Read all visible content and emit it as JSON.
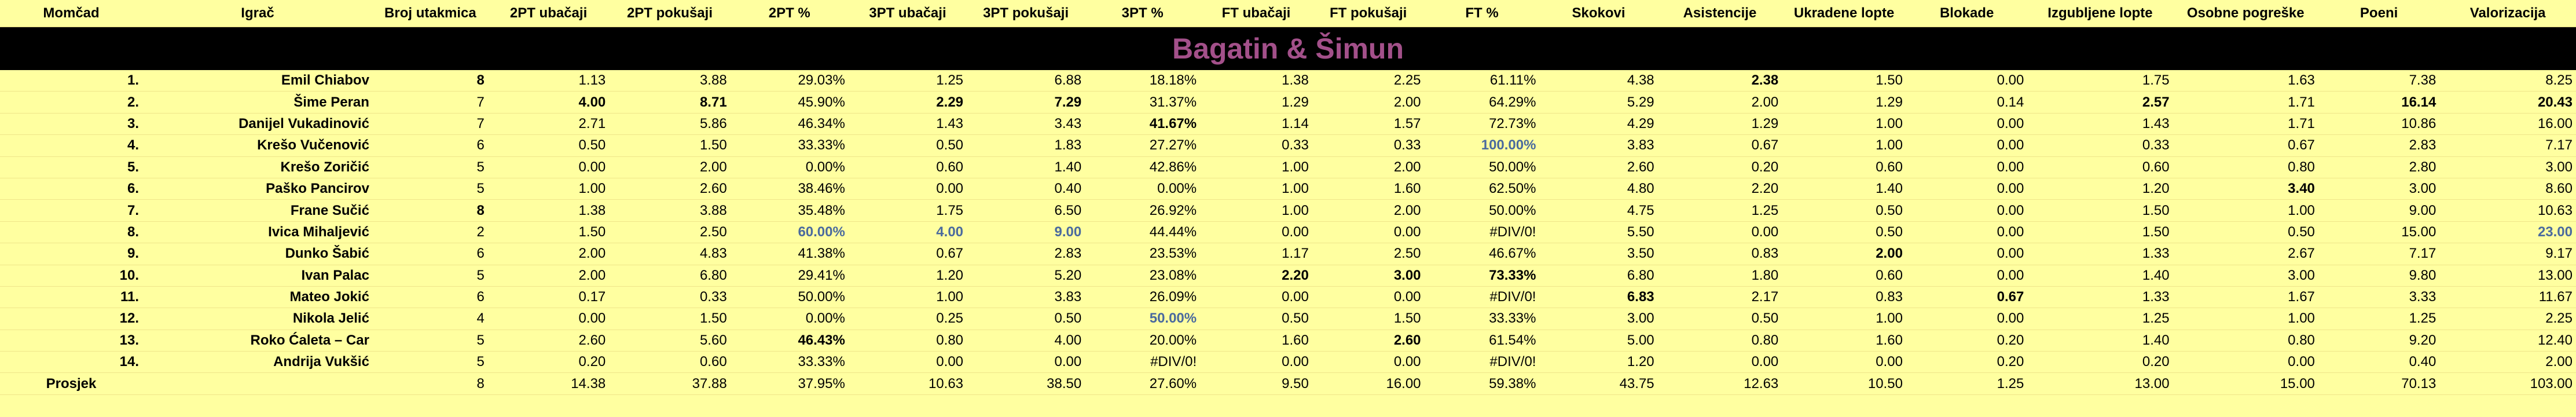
{
  "title": "Bagatin & Šimun",
  "columns": [
    "Momčad",
    "Igrač",
    "Broj utakmica",
    "2PT ubačaji",
    "2PT pokušaji",
    "2PT %",
    "3PT ubačaji",
    "3PT pokušaji",
    "3PT %",
    "FT ubačaji",
    "FT pokušaji",
    "FT %",
    "Skokovi",
    "Asistencije",
    "Ukradene lopte",
    "Blokade",
    "Izgubljene lopte",
    "Osobne pogreške",
    "Poeni",
    "Valorizacija"
  ],
  "rows": [
    {
      "rank": "1.",
      "player": "Emil Chiabov",
      "games": "8",
      "pt2m": "1.13",
      "pt2a": "3.88",
      "pt2p": "29.03%",
      "pt3m": "1.25",
      "pt3a": "6.88",
      "pt3p": "18.18%",
      "ftm": "1.38",
      "fta": "2.25",
      "ftp": "61.11%",
      "reb": "4.38",
      "ast": "2.38",
      "stl": "1.50",
      "blk": "0.00",
      "tov": "1.75",
      "pf": "1.63",
      "pts": "7.38",
      "val": "8.25"
    },
    {
      "rank": "2.",
      "player": "Šime Peran",
      "games": "7",
      "pt2m": "4.00",
      "pt2a": "8.71",
      "pt2p": "45.90%",
      "pt3m": "2.29",
      "pt3a": "7.29",
      "pt3p": "31.37%",
      "ftm": "1.29",
      "fta": "2.00",
      "ftp": "64.29%",
      "reb": "5.29",
      "ast": "2.00",
      "stl": "1.29",
      "blk": "0.14",
      "tov": "2.57",
      "pf": "1.71",
      "pts": "16.14",
      "val": "20.43"
    },
    {
      "rank": "3.",
      "player": "Danijel Vukadinović",
      "games": "7",
      "pt2m": "2.71",
      "pt2a": "5.86",
      "pt2p": "46.34%",
      "pt3m": "1.43",
      "pt3a": "3.43",
      "pt3p": "41.67%",
      "ftm": "1.14",
      "fta": "1.57",
      "ftp": "72.73%",
      "reb": "4.29",
      "ast": "1.29",
      "stl": "1.00",
      "blk": "0.00",
      "tov": "1.43",
      "pf": "1.71",
      "pts": "10.86",
      "val": "16.00"
    },
    {
      "rank": "4.",
      "player": "Krešo Vučenović",
      "games": "6",
      "pt2m": "0.50",
      "pt2a": "1.50",
      "pt2p": "33.33%",
      "pt3m": "0.50",
      "pt3a": "1.83",
      "pt3p": "27.27%",
      "ftm": "0.33",
      "fta": "0.33",
      "ftp": "100.00%",
      "reb": "3.83",
      "ast": "0.67",
      "stl": "1.00",
      "blk": "0.00",
      "tov": "0.33",
      "pf": "0.67",
      "pts": "2.83",
      "val": "7.17"
    },
    {
      "rank": "5.",
      "player": "Krešo Zoričić",
      "games": "5",
      "pt2m": "0.00",
      "pt2a": "2.00",
      "pt2p": "0.00%",
      "pt3m": "0.60",
      "pt3a": "1.40",
      "pt3p": "42.86%",
      "ftm": "1.00",
      "fta": "2.00",
      "ftp": "50.00%",
      "reb": "2.60",
      "ast": "0.20",
      "stl": "0.60",
      "blk": "0.00",
      "tov": "0.60",
      "pf": "0.80",
      "pts": "2.80",
      "val": "3.00"
    },
    {
      "rank": "6.",
      "player": "Paško Pancirov",
      "games": "5",
      "pt2m": "1.00",
      "pt2a": "2.60",
      "pt2p": "38.46%",
      "pt3m": "0.00",
      "pt3a": "0.40",
      "pt3p": "0.00%",
      "ftm": "1.00",
      "fta": "1.60",
      "ftp": "62.50%",
      "reb": "4.80",
      "ast": "2.20",
      "stl": "1.40",
      "blk": "0.00",
      "tov": "1.20",
      "pf": "3.40",
      "pts": "3.00",
      "val": "8.60"
    },
    {
      "rank": "7.",
      "player": "Frane Sučić",
      "games": "8",
      "pt2m": "1.38",
      "pt2a": "3.88",
      "pt2p": "35.48%",
      "pt3m": "1.75",
      "pt3a": "6.50",
      "pt3p": "26.92%",
      "ftm": "1.00",
      "fta": "2.00",
      "ftp": "50.00%",
      "reb": "4.75",
      "ast": "1.25",
      "stl": "0.50",
      "blk": "0.00",
      "tov": "1.50",
      "pf": "1.00",
      "pts": "9.00",
      "val": "10.63"
    },
    {
      "rank": "8.",
      "player": "Ivica Mihaljević",
      "games": "2",
      "pt2m": "1.50",
      "pt2a": "2.50",
      "pt2p": "60.00%",
      "pt3m": "4.00",
      "pt3a": "9.00",
      "pt3p": "44.44%",
      "ftm": "0.00",
      "fta": "0.00",
      "ftp": "#DIV/0!",
      "reb": "5.50",
      "ast": "0.00",
      "stl": "0.50",
      "blk": "0.00",
      "tov": "1.50",
      "pf": "0.50",
      "pts": "15.00",
      "val": "23.00"
    },
    {
      "rank": "9.",
      "player": "Dunko Šabić",
      "games": "6",
      "pt2m": "2.00",
      "pt2a": "4.83",
      "pt2p": "41.38%",
      "pt3m": "0.67",
      "pt3a": "2.83",
      "pt3p": "23.53%",
      "ftm": "1.17",
      "fta": "2.50",
      "ftp": "46.67%",
      "reb": "3.50",
      "ast": "0.83",
      "stl": "2.00",
      "blk": "0.00",
      "tov": "1.33",
      "pf": "2.67",
      "pts": "7.17",
      "val": "9.17"
    },
    {
      "rank": "10.",
      "player": "Ivan Palac",
      "games": "5",
      "pt2m": "2.00",
      "pt2a": "6.80",
      "pt2p": "29.41%",
      "pt3m": "1.20",
      "pt3a": "5.20",
      "pt3p": "23.08%",
      "ftm": "2.20",
      "fta": "3.00",
      "ftp": "73.33%",
      "reb": "6.80",
      "ast": "1.80",
      "stl": "0.60",
      "blk": "0.00",
      "tov": "1.40",
      "pf": "3.00",
      "pts": "9.80",
      "val": "13.00"
    },
    {
      "rank": "11.",
      "player": "Mateo Jokić",
      "games": "6",
      "pt2m": "0.17",
      "pt2a": "0.33",
      "pt2p": "50.00%",
      "pt3m": "1.00",
      "pt3a": "3.83",
      "pt3p": "26.09%",
      "ftm": "0.00",
      "fta": "0.00",
      "ftp": "#DIV/0!",
      "reb": "6.83",
      "ast": "2.17",
      "stl": "0.83",
      "blk": "0.67",
      "tov": "1.33",
      "pf": "1.67",
      "pts": "3.33",
      "val": "11.67"
    },
    {
      "rank": "12.",
      "player": "Nikola Jelić",
      "games": "4",
      "pt2m": "0.00",
      "pt2a": "1.50",
      "pt2p": "0.00%",
      "pt3m": "0.25",
      "pt3a": "0.50",
      "pt3p": "50.00%",
      "ftm": "0.50",
      "fta": "1.50",
      "ftp": "33.33%",
      "reb": "3.00",
      "ast": "0.50",
      "stl": "1.00",
      "blk": "0.00",
      "tov": "1.25",
      "pf": "1.00",
      "pts": "1.25",
      "val": "2.25"
    },
    {
      "rank": "13.",
      "player": "Roko Ćaleta – Car",
      "games": "5",
      "pt2m": "2.60",
      "pt2a": "5.60",
      "pt2p": "46.43%",
      "pt3m": "0.80",
      "pt3a": "4.00",
      "pt3p": "20.00%",
      "ftm": "1.60",
      "fta": "2.60",
      "ftp": "61.54%",
      "reb": "5.00",
      "ast": "0.80",
      "stl": "1.60",
      "blk": "0.20",
      "tov": "1.40",
      "pf": "0.80",
      "pts": "9.20",
      "val": "12.40"
    },
    {
      "rank": "14.",
      "player": "Andrija Vukšić",
      "games": "5",
      "pt2m": "0.20",
      "pt2a": "0.60",
      "pt2p": "33.33%",
      "pt3m": "0.00",
      "pt3a": "0.00",
      "pt3p": "#DIV/0!",
      "ftm": "0.00",
      "fta": "0.00",
      "ftp": "#DIV/0!",
      "reb": "1.20",
      "ast": "0.00",
      "stl": "0.00",
      "blk": "0.20",
      "tov": "0.20",
      "pf": "0.00",
      "pts": "0.40",
      "val": "2.00"
    }
  ],
  "average": {
    "rank": "Prosjek",
    "player": "",
    "games": "8",
    "pt2m": "14.38",
    "pt2a": "37.88",
    "pt2p": "37.95%",
    "pt3m": "10.63",
    "pt3a": "38.50",
    "pt3p": "27.60%",
    "ftm": "9.50",
    "fta": "16.00",
    "ftp": "59.38%",
    "reb": "43.75",
    "ast": "12.63",
    "stl": "10.50",
    "blk": "1.25",
    "tov": "13.00",
    "pf": "15.00",
    "pts": "70.13",
    "val": "103.00"
  },
  "styles": {
    "bold": [
      [
        0,
        "games"
      ],
      [
        0,
        "ast"
      ],
      [
        1,
        "pt2m"
      ],
      [
        1,
        "pt2a"
      ],
      [
        1,
        "pt3m"
      ],
      [
        1,
        "pt3a"
      ],
      [
        1,
        "tov"
      ],
      [
        1,
        "pts"
      ],
      [
        1,
        "val"
      ],
      [
        2,
        "pt3p"
      ],
      [
        5,
        "pf"
      ],
      [
        6,
        "games"
      ],
      [
        8,
        "stl"
      ],
      [
        9,
        "ftm"
      ],
      [
        9,
        "fta"
      ],
      [
        9,
        "ftp"
      ],
      [
        10,
        "reb"
      ],
      [
        10,
        "blk"
      ],
      [
        12,
        "pt2p"
      ],
      [
        12,
        "fta"
      ]
    ],
    "blue": [
      [
        3,
        "ftp"
      ],
      [
        7,
        "pt2p"
      ],
      [
        7,
        "pt3m"
      ],
      [
        7,
        "pt3a"
      ],
      [
        7,
        "val"
      ],
      [
        11,
        "pt3p"
      ]
    ]
  }
}
